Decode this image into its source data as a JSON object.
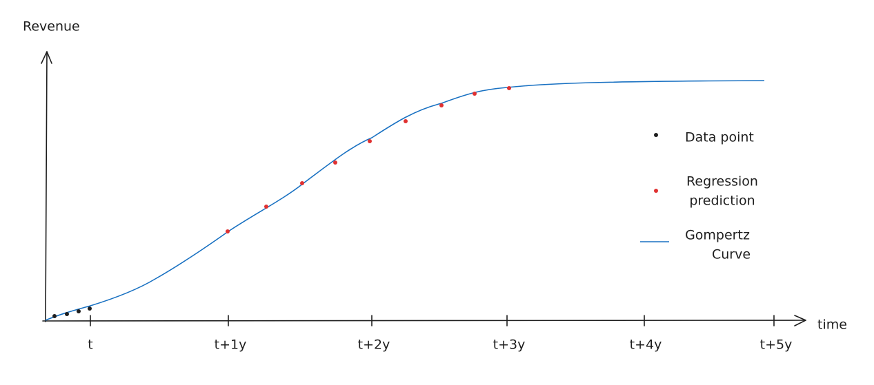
{
  "axes": {
    "y_label": "Revenue",
    "x_label": "time",
    "x_ticks": [
      "t",
      "t+1y",
      "t+2y",
      "t+3y",
      "t+4y",
      "t+5y"
    ]
  },
  "legend": [
    {
      "lines": [
        "Data point"
      ]
    },
    {
      "lines": [
        "Regression",
        "prediction"
      ]
    },
    {
      "lines": [
        "Gompertz",
        "Curve"
      ]
    }
  ]
}
